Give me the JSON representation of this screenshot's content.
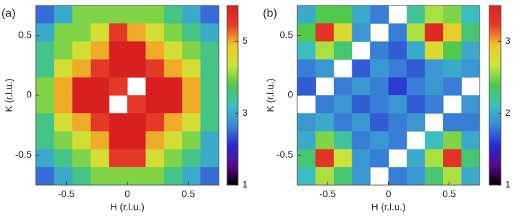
{
  "chart_data": [
    {
      "type": "heatmap",
      "label": "(a)",
      "xlabel": "H (r.l.u.)",
      "ylabel": "K (r.l.u.)",
      "xlim": [
        -0.75,
        0.75
      ],
      "ylim": [
        -0.75,
        0.75
      ],
      "xticks": [
        -0.5,
        0,
        0.5
      ],
      "yticks": [
        -0.5,
        0,
        0.5
      ],
      "clim": [
        1,
        6
      ],
      "cticks": [
        1,
        3,
        5
      ],
      "colorscale": [
        "#000000",
        "#5a0a8c",
        "#2a2ad0",
        "#3a8ad8",
        "#3cc0c0",
        "#4cc84c",
        "#c8e63c",
        "#f0c828",
        "#e63c28",
        "#d82020"
      ],
      "values": [
        [
          2.5,
          3,
          4,
          4,
          4,
          4,
          4,
          3.5,
          3,
          2.5
        ],
        [
          3,
          4,
          4,
          4.5,
          5.5,
          5,
          4.5,
          4,
          3.5,
          3
        ],
        [
          3.5,
          4,
          4.5,
          5,
          6,
          6,
          5,
          4.5,
          4,
          3.5
        ],
        [
          3.5,
          4.5,
          5,
          5.5,
          6,
          6,
          5.5,
          5,
          4.5,
          3.5
        ],
        [
          4,
          5,
          6,
          6,
          5.5,
          null,
          6,
          6,
          5,
          3.5
        ],
        [
          4,
          5,
          6,
          6,
          null,
          5.5,
          6,
          6,
          5,
          3.5
        ],
        [
          3.5,
          4.5,
          5,
          5.5,
          6,
          6,
          5.5,
          5,
          4.5,
          3.5
        ],
        [
          3.5,
          4,
          4.5,
          5,
          6,
          6,
          5,
          4.5,
          4,
          3
        ],
        [
          3,
          3.5,
          4,
          4.5,
          5.5,
          5.5,
          4.5,
          4,
          3.5,
          3
        ],
        [
          2.5,
          3,
          3.5,
          4,
          4,
          4,
          4,
          3.5,
          3,
          2.5
        ]
      ]
    },
    {
      "type": "heatmap",
      "label": "(b)",
      "xlabel": "H (r.l.u.)",
      "ylabel": "K (r.l.u.)",
      "xlim": [
        -0.75,
        0.75
      ],
      "ylim": [
        -0.75,
        0.75
      ],
      "xticks": [
        -0.5,
        0,
        0.5
      ],
      "yticks": [
        -0.5,
        0,
        0.5
      ],
      "clim": [
        1,
        3.5
      ],
      "cticks": [
        1,
        2,
        3
      ],
      "colorscale": [
        "#000000",
        "#5a0a8c",
        "#2a2ad0",
        "#3a8ad8",
        "#3cc0c0",
        "#4cc84c",
        "#c8e63c",
        "#f0c828",
        "#e63c28",
        "#d82020"
      ],
      "values": [
        [
          2.0,
          2.4,
          2.4,
          2.0,
          1.8,
          null,
          2.2,
          2.6,
          2.5,
          2.1
        ],
        [
          2.4,
          3.3,
          2.8,
          1.9,
          null,
          1.8,
          2.6,
          3.4,
          2.9,
          2.3
        ],
        [
          2.1,
          2.6,
          2.3,
          null,
          1.8,
          1.7,
          2.0,
          2.8,
          2.4,
          2.0
        ],
        [
          1.8,
          1.9,
          null,
          1.7,
          1.9,
          1.8,
          1.7,
          1.9,
          2.0,
          1.9
        ],
        [
          1.7,
          null,
          1.8,
          1.9,
          1.8,
          1.6,
          1.8,
          1.9,
          1.8,
          null
        ],
        [
          null,
          1.8,
          1.9,
          1.7,
          1.8,
          1.9,
          1.7,
          1.8,
          null,
          1.9
        ],
        [
          1.9,
          2.0,
          1.8,
          1.9,
          1.7,
          1.8,
          1.9,
          null,
          1.8,
          1.8
        ],
        [
          2.0,
          2.5,
          2.2,
          1.8,
          1.9,
          1.8,
          null,
          2.1,
          2.5,
          2.0
        ],
        [
          2.3,
          3.3,
          2.7,
          1.9,
          1.8,
          null,
          2.0,
          2.6,
          3.3,
          2.3
        ],
        [
          2.1,
          2.6,
          2.3,
          1.9,
          null,
          1.8,
          1.9,
          2.3,
          2.6,
          2.0
        ]
      ]
    }
  ]
}
